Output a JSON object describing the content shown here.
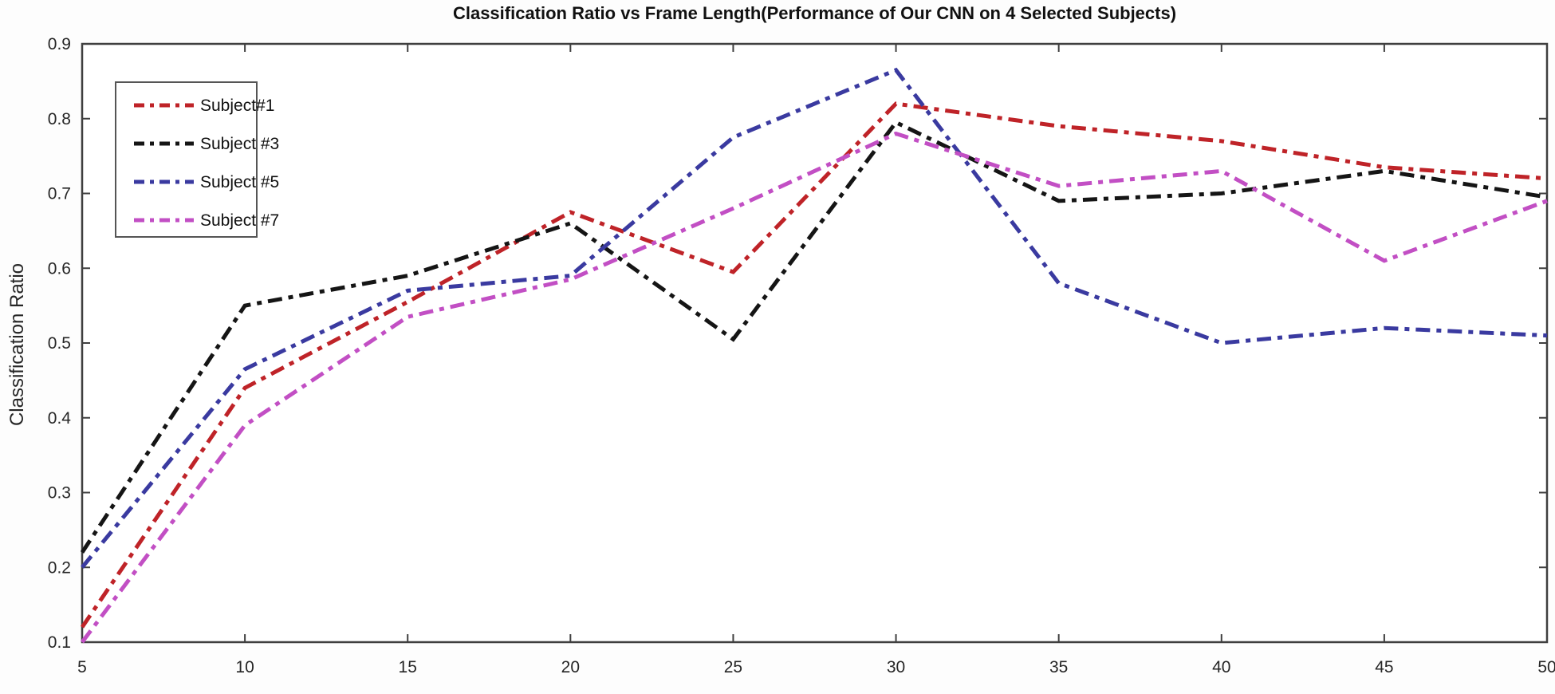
{
  "figure": {
    "background_color": "#fdfdfd",
    "plot_background_color": "#ffffff",
    "axis_color": "#3f3f3f",
    "tick_label_color": "#262626",
    "title_color": "#111111",
    "legend_border_color": "#555555"
  },
  "chart_data": {
    "type": "line",
    "title": "Classification Ratio vs Frame Length(Performance of Our CNN on 4 Selected Subjects)",
    "xlabel": "",
    "ylabel": "Classification Ratio",
    "xlim": [
      5,
      50
    ],
    "ylim": [
      0.1,
      0.9
    ],
    "xticks": [
      5,
      10,
      15,
      20,
      25,
      30,
      35,
      40,
      45,
      50
    ],
    "yticks": [
      0.1,
      0.2,
      0.3,
      0.4,
      0.5,
      0.6,
      0.7,
      0.8,
      0.9
    ],
    "grid": false,
    "legend_position": "top-left",
    "line_style": "dash-dot",
    "x": [
      5,
      10,
      15,
      20,
      25,
      30,
      35,
      40,
      45,
      50
    ],
    "series": [
      {
        "name": "Subject#1",
        "color": "#bf2328",
        "values": [
          0.12,
          0.44,
          0.555,
          0.675,
          0.595,
          0.82,
          0.79,
          0.77,
          0.735,
          0.72
        ]
      },
      {
        "name": "Subject #3",
        "color": "#151515",
        "values": [
          0.22,
          0.55,
          0.59,
          0.66,
          0.505,
          0.795,
          0.69,
          0.7,
          0.73,
          0.695
        ]
      },
      {
        "name": "Subject #5",
        "color": "#3a3aa0",
        "values": [
          0.2,
          0.465,
          0.57,
          0.59,
          0.775,
          0.865,
          0.58,
          0.5,
          0.52,
          0.51
        ]
      },
      {
        "name": "Subject #7",
        "color": "#c24fc4",
        "values": [
          0.1,
          0.39,
          0.535,
          0.585,
          0.68,
          0.78,
          0.71,
          0.73,
          0.61,
          0.69
        ]
      }
    ]
  }
}
